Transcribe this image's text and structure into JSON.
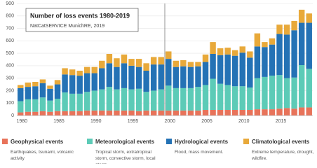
{
  "chart_data": {
    "type": "stacked-bar",
    "title": "Number of loss events 1980-2019",
    "subtitle": "NatCatSERVICE MunichRE, 2019",
    "categories": [
      "1980",
      null,
      null,
      null,
      null,
      "1985",
      null,
      null,
      null,
      null,
      "1990",
      null,
      null,
      null,
      null,
      "1995",
      null,
      null,
      null,
      null,
      "2000",
      null,
      null,
      null,
      null,
      "2005",
      null,
      null,
      null,
      null,
      "2010",
      null,
      null,
      null,
      null,
      "2015",
      null,
      null,
      null,
      null
    ],
    "series": [
      {
        "name": "Geophysical events",
        "description": "Earthquakes, tsunami, volcanic activity",
        "color": "#e8735a",
        "values": [
          25,
          30,
          30,
          35,
          30,
          35,
          35,
          35,
          35,
          40,
          40,
          40,
          40,
          40,
          40,
          40,
          35,
          40,
          40,
          40,
          40,
          40,
          40,
          40,
          40,
          45,
          45,
          45,
          45,
          45,
          45,
          45,
          50,
          50,
          50,
          55,
          60,
          55,
          65,
          65
        ]
      },
      {
        "name": "Meteorological events",
        "description": "Tropical storm, extratropical storm, convective storm, local storm.",
        "color": "#5ccbb7",
        "values": [
          90,
          100,
          100,
          110,
          90,
          100,
          150,
          140,
          140,
          150,
          160,
          170,
          190,
          170,
          180,
          170,
          180,
          150,
          160,
          170,
          200,
          180,
          180,
          180,
          190,
          200,
          250,
          210,
          200,
          190,
          190,
          180,
          250,
          260,
          270,
          270,
          240,
          250,
          340,
          310
        ]
      },
      {
        "name": "Hydrological events",
        "description": "Flood, mass movement.",
        "color": "#2472b5",
        "values": [
          105,
          100,
          105,
          115,
          95,
          115,
          145,
          150,
          145,
          150,
          140,
          170,
          190,
          180,
          200,
          190,
          175,
          170,
          210,
          200,
          215,
          170,
          175,
          170,
          165,
          185,
          200,
          230,
          245,
          245,
          270,
          240,
          255,
          240,
          250,
          330,
          350,
          380,
          340,
          370
        ]
      },
      {
        "name": "Climatological events",
        "description": "Extreme temperature, drought, wildfire.",
        "color": "#e8a93a",
        "values": [
          25,
          35,
          35,
          30,
          25,
          35,
          50,
          45,
          40,
          50,
          50,
          60,
          75,
          70,
          70,
          55,
          65,
          60,
          60,
          60,
          60,
          50,
          50,
          40,
          35,
          60,
          95,
          55,
          55,
          45,
          50,
          50,
          105,
          40,
          50,
          75,
          80,
          75,
          105,
          75
        ]
      }
    ],
    "ylim": [
      0,
      900
    ],
    "yticks": [
      0,
      100,
      200,
      300,
      400,
      500,
      600,
      700,
      800,
      900
    ],
    "grid": true
  }
}
